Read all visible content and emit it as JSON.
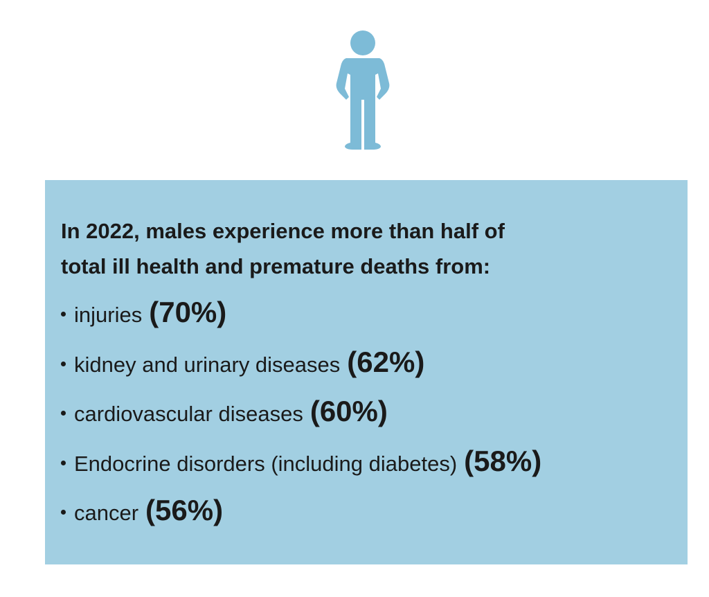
{
  "heading_lines": [
    "In 2022, males experience more than half of",
    "total ill health and premature deaths from:"
  ],
  "items": [
    {
      "label": "injuries",
      "value_label": "(70%)"
    },
    {
      "label": "kidney and urinary diseases",
      "value_label": "(62%)"
    },
    {
      "label": "cardiovascular diseases",
      "value_label": "(60%)"
    },
    {
      "label": "Endocrine disorders (including diabetes)",
      "value_label": "(58%)"
    },
    {
      "label": "cancer",
      "value_label": "(56%)"
    }
  ]
}
